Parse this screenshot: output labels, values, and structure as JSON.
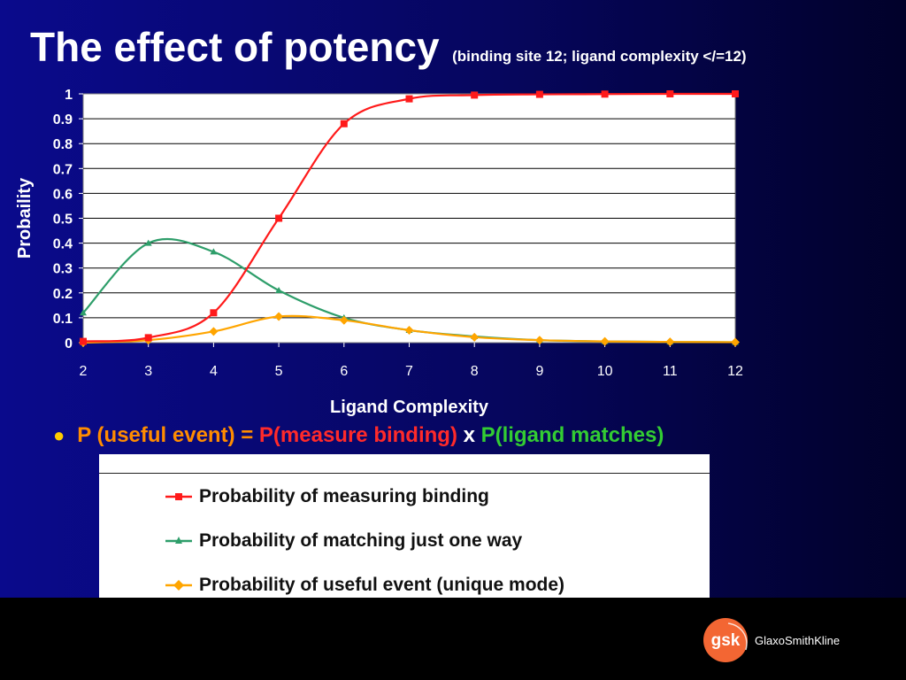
{
  "title": {
    "main": "The effect of potency",
    "sub": "(binding site 12; ligand complexity </=12)"
  },
  "formula": {
    "p_useful": "P (useful event)",
    "equals": " = ",
    "p_measure": "P(measure binding)",
    "times": " x ",
    "p_ligand": "P(ligand matches)"
  },
  "colors": {
    "measure": "#ff1a1a",
    "matching": "#2e9e6a",
    "useful": "#ffa500",
    "formula_useful": "#ff8c00",
    "formula_measure": "#ff2a2a",
    "formula_ligand": "#33cc33"
  },
  "chart_data": {
    "type": "line",
    "xlabel": "Ligand Complexity",
    "ylabel": "Probaility",
    "xlim": [
      2,
      12
    ],
    "ylim": [
      0,
      1
    ],
    "x_ticks": [
      "2",
      "3",
      "4",
      "5",
      "6",
      "7",
      "8",
      "9",
      "10",
      "11",
      "12"
    ],
    "y_ticks": [
      "0",
      "0.1",
      "0.2",
      "0.3",
      "0.4",
      "0.5",
      "0.6",
      "0.7",
      "0.8",
      "0.9",
      "1"
    ],
    "grid": "horizontal",
    "x": [
      2,
      3,
      4,
      5,
      6,
      7,
      8,
      9,
      10,
      11,
      12
    ],
    "series": [
      {
        "name": "Probability of measuring binding",
        "marker": "square",
        "values": [
          0.005,
          0.02,
          0.12,
          0.5,
          0.88,
          0.98,
          0.995,
          0.998,
          0.999,
          1.0,
          1.0
        ]
      },
      {
        "name": "Probability of matching just one way",
        "marker": "triangle",
        "values": [
          0.12,
          0.4,
          0.365,
          0.21,
          0.1,
          0.05,
          0.025,
          0.01,
          0.005,
          0.003,
          0.002
        ]
      },
      {
        "name": "Probability of useful event (unique mode)",
        "marker": "diamond",
        "values": [
          0.0,
          0.01,
          0.045,
          0.105,
          0.09,
          0.05,
          0.022,
          0.01,
          0.005,
          0.003,
          0.002
        ]
      }
    ]
  },
  "logo": {
    "mark": "gsk",
    "text": "GlaxoSmithKline"
  }
}
